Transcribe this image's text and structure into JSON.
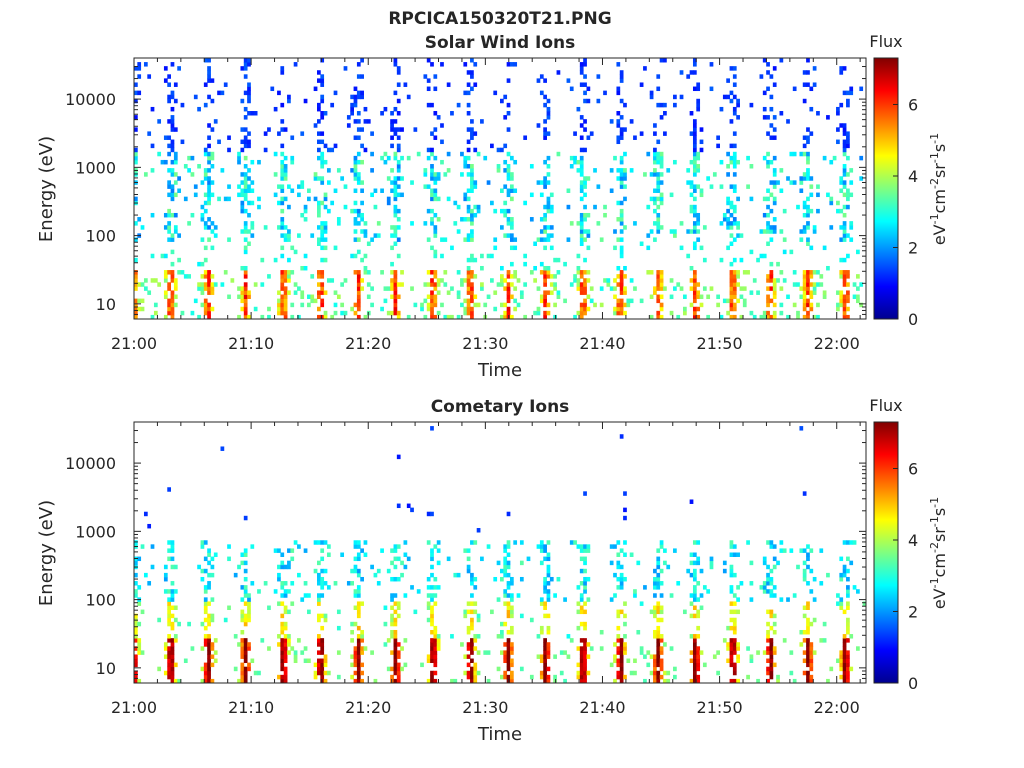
{
  "figure_title": "RPCICA150320T21.PNG",
  "colormap_name": "jet",
  "chart_data": [
    {
      "type": "heatmap",
      "title": "Solar Wind Ions",
      "xlabel": "Time",
      "ylabel": "Energy (eV)",
      "x_ticks": [
        "21:00",
        "21:10",
        "21:20",
        "21:30",
        "21:40",
        "21:50",
        "22:00"
      ],
      "xlim_minutes_after_21_00": [
        0,
        62.5
      ],
      "y_scale": "log",
      "ylim_eV": [
        6,
        40000
      ],
      "y_ticks": [
        {
          "value": 10,
          "label": "10"
        },
        {
          "value": 100,
          "label": "100"
        },
        {
          "value": 1000,
          "label": "1000"
        },
        {
          "value": 10000,
          "label": "10000"
        }
      ],
      "colorbar": {
        "label": "Flux",
        "units": "eV-1cm-2sr-1s-1",
        "range": [
          0,
          7.3
        ],
        "ticks": [
          "0",
          "2",
          "4",
          "6"
        ]
      },
      "pattern": {
        "sweep_period_min": 3.2,
        "bursts_low_energy": true,
        "sparse_high_energy": true
      }
    },
    {
      "type": "heatmap",
      "title": "Cometary Ions",
      "xlabel": "Time",
      "ylabel": "Energy (eV)",
      "x_ticks": [
        "21:00",
        "21:10",
        "21:20",
        "21:30",
        "21:40",
        "21:50",
        "22:00"
      ],
      "xlim_minutes_after_21_00": [
        0,
        62.5
      ],
      "y_scale": "log",
      "ylim_eV": [
        6,
        40000
      ],
      "y_ticks": [
        {
          "value": 10,
          "label": "10"
        },
        {
          "value": 100,
          "label": "100"
        },
        {
          "value": 1000,
          "label": "1000"
        },
        {
          "value": 10000,
          "label": "10000"
        }
      ],
      "colorbar": {
        "label": "Flux",
        "units": "eV-1cm-2sr-1s-1",
        "range": [
          0,
          7.3
        ],
        "ticks": [
          "0",
          "2",
          "4",
          "6"
        ]
      },
      "pattern": {
        "sweep_period_min": 3.2,
        "bursts_low_energy": true,
        "sparse_high_energy": true
      }
    }
  ]
}
